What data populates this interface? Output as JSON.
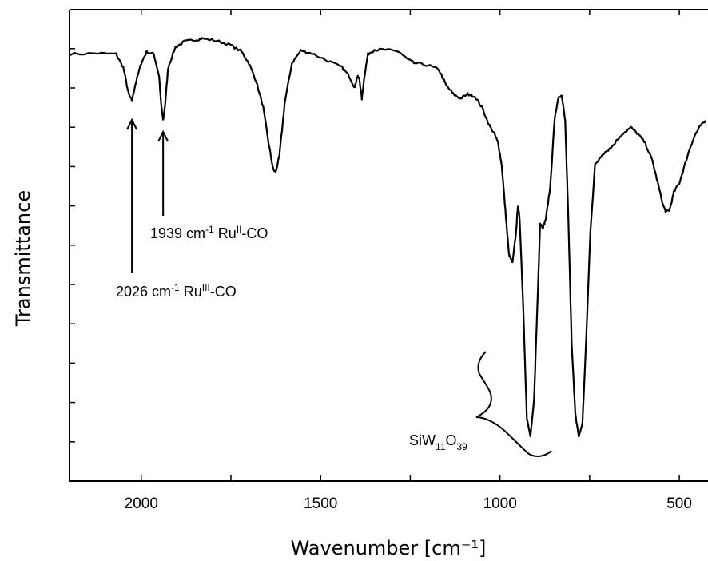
{
  "chart_data": {
    "type": "line",
    "title": "",
    "xlabel": "Wavenumber [cm⁻¹]",
    "ylabel": "Transmittance",
    "x_reversed": true,
    "xlim": [
      2200,
      420
    ],
    "ylim": [
      -1.0,
      105.0
    ],
    "x_ticks": [
      2000,
      1500,
      1000,
      500
    ],
    "x_tick_labels": [
      "2000",
      "1500",
      "1000",
      "500"
    ],
    "y_tick_labels_shown": false,
    "grid": false,
    "series": [
      {
        "points": [
          [
            2200,
            95
          ],
          [
            2120,
            95.2
          ],
          [
            2070,
            95
          ],
          [
            2050,
            92
          ],
          [
            2035,
            86
          ],
          [
            2026,
            84.5
          ],
          [
            2017,
            88
          ],
          [
            2000,
            93
          ],
          [
            1985,
            95.5
          ],
          [
            1965,
            95
          ],
          [
            1950,
            90
          ],
          [
            1945,
            84
          ],
          [
            1939,
            80
          ],
          [
            1933,
            84
          ],
          [
            1925,
            92
          ],
          [
            1905,
            96.5
          ],
          [
            1880,
            97.8
          ],
          [
            1850,
            98.2
          ],
          [
            1830,
            98.5
          ],
          [
            1790,
            98
          ],
          [
            1750,
            97
          ],
          [
            1720,
            95.5
          ],
          [
            1700,
            93
          ],
          [
            1680,
            89
          ],
          [
            1660,
            83
          ],
          [
            1645,
            75
          ],
          [
            1632,
            69
          ],
          [
            1625,
            68.5
          ],
          [
            1615,
            72
          ],
          [
            1600,
            84
          ],
          [
            1580,
            93
          ],
          [
            1555,
            95.8
          ],
          [
            1525,
            95.2
          ],
          [
            1480,
            93.5
          ],
          [
            1440,
            92
          ],
          [
            1420,
            90
          ],
          [
            1405,
            87.5
          ],
          [
            1398,
            90
          ],
          [
            1392,
            89.5
          ],
          [
            1385,
            85
          ],
          [
            1378,
            90
          ],
          [
            1368,
            95
          ],
          [
            1350,
            96
          ],
          [
            1320,
            96
          ],
          [
            1280,
            95.5
          ],
          [
            1260,
            94
          ],
          [
            1240,
            93
          ],
          [
            1200,
            92.5
          ],
          [
            1170,
            91.5
          ],
          [
            1150,
            88
          ],
          [
            1130,
            86
          ],
          [
            1110,
            85
          ],
          [
            1090,
            86
          ],
          [
            1070,
            85.5
          ],
          [
            1050,
            83
          ],
          [
            1030,
            79
          ],
          [
            1015,
            77
          ],
          [
            1005,
            75
          ],
          [
            995,
            70
          ],
          [
            985,
            60
          ],
          [
            975,
            50
          ],
          [
            965,
            48
          ],
          [
            955,
            55
          ],
          [
            950,
            61
          ],
          [
            945,
            58
          ],
          [
            935,
            38
          ],
          [
            925,
            13
          ],
          [
            915,
            9
          ],
          [
            905,
            17
          ],
          [
            895,
            40
          ],
          [
            888,
            57
          ],
          [
            880,
            56
          ],
          [
            872,
            58
          ],
          [
            860,
            65
          ],
          [
            848,
            80
          ],
          [
            838,
            85
          ],
          [
            828,
            85.5
          ],
          [
            818,
            80
          ],
          [
            810,
            60
          ],
          [
            800,
            30
          ],
          [
            790,
            14
          ],
          [
            780,
            9
          ],
          [
            770,
            12
          ],
          [
            760,
            30
          ],
          [
            748,
            55
          ],
          [
            735,
            70
          ],
          [
            715,
            72.5
          ],
          [
            690,
            74
          ],
          [
            660,
            77
          ],
          [
            635,
            78.5
          ],
          [
            615,
            77
          ],
          [
            595,
            75
          ],
          [
            575,
            71
          ],
          [
            560,
            66
          ],
          [
            545,
            61
          ],
          [
            537,
            59.5
          ],
          [
            527,
            60
          ],
          [
            515,
            64
          ],
          [
            500,
            66
          ],
          [
            485,
            70
          ],
          [
            470,
            74
          ],
          [
            455,
            77
          ],
          [
            440,
            79
          ],
          [
            425,
            80
          ]
        ]
      }
    ],
    "annotations": [
      {
        "text_main": "1939 cm",
        "text_sup": "-1",
        "text_after": " Ru",
        "text_sup2": "II",
        "text_tail": "-CO",
        "x": 1939,
        "arrow": "up"
      },
      {
        "text_main": "2026 cm",
        "text_sup": "-1",
        "text_after": " Ru",
        "text_sup2": "III",
        "text_tail": "-CO",
        "x": 2026,
        "arrow": "up"
      },
      {
        "text_main": "SiW",
        "sub1": "11",
        "text_after": "O",
        "sub2": "39",
        "x_range": [
          915,
          780
        ],
        "bracket": "brace"
      }
    ]
  }
}
